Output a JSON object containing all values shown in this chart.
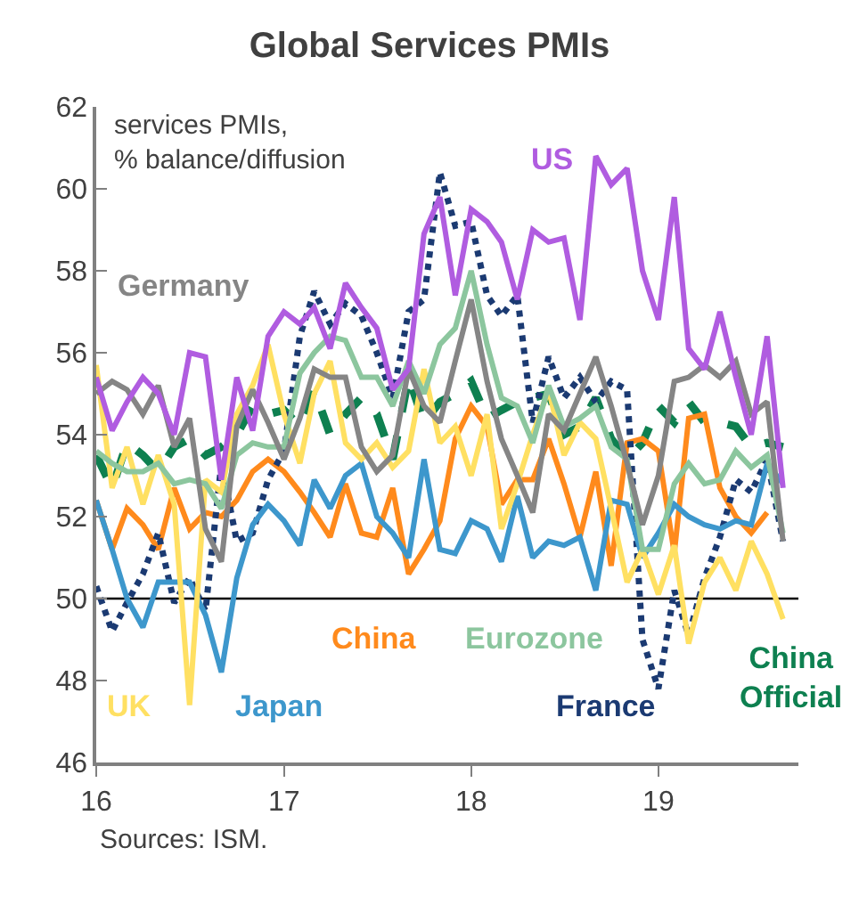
{
  "chart_data": {
    "type": "line",
    "title": "Global Services PMIs",
    "x": [
      "2016-01",
      "2016-02",
      "2016-03",
      "2016-04",
      "2016-05",
      "2016-06",
      "2016-07",
      "2016-08",
      "2016-09",
      "2016-10",
      "2016-11",
      "2016-12",
      "2017-01",
      "2017-02",
      "2017-03",
      "2017-04",
      "2017-05",
      "2017-06",
      "2017-07",
      "2017-08",
      "2017-09",
      "2017-10",
      "2017-11",
      "2017-12",
      "2018-01",
      "2018-02",
      "2018-03",
      "2018-04",
      "2018-05",
      "2018-06",
      "2018-07",
      "2018-08",
      "2018-09",
      "2018-10",
      "2018-11",
      "2018-12",
      "2019-01",
      "2019-02",
      "2019-03",
      "2019-04",
      "2019-05",
      "2019-06",
      "2019-07",
      "2019-08",
      "2019-09"
    ],
    "series": [
      {
        "name": "US",
        "color": "#b05ce0",
        "line_style": "solid",
        "values": [
          55.4,
          54.1,
          54.8,
          55.4,
          55.0,
          54.0,
          56.0,
          55.9,
          52.9,
          55.4,
          54.1,
          56.4,
          57.0,
          56.7,
          57.1,
          56.1,
          57.7,
          57.1,
          56.6,
          55.1,
          55.6,
          58.9,
          59.8,
          57.4,
          59.5,
          59.2,
          58.7,
          57.3,
          59.0,
          58.7,
          58.8,
          56.8,
          60.8,
          60.1,
          60.5,
          58.0,
          56.8,
          59.8,
          56.1,
          55.6,
          57.0,
          55.4,
          54.0,
          56.4,
          52.7
        ]
      },
      {
        "name": "Germany",
        "color": "#858585",
        "line_style": "solid",
        "values": [
          55.0,
          55.3,
          55.1,
          54.5,
          55.2,
          53.7,
          54.4,
          51.7,
          50.9,
          54.2,
          55.1,
          54.3,
          53.4,
          54.4,
          55.6,
          55.4,
          55.4,
          53.7,
          53.1,
          53.5,
          55.6,
          54.7,
          54.3,
          55.8,
          57.3,
          55.3,
          53.9,
          53.0,
          52.1,
          54.5,
          54.1,
          55.0,
          55.9,
          54.7,
          53.3,
          51.8,
          53.0,
          55.3,
          55.4,
          55.7,
          55.4,
          55.8,
          54.5,
          54.8,
          51.4
        ]
      },
      {
        "name": "Eurozone",
        "color": "#8cc69e",
        "line_style": "solid",
        "values": [
          53.6,
          53.3,
          53.1,
          53.1,
          53.3,
          52.8,
          52.9,
          52.8,
          52.2,
          53.5,
          53.8,
          53.7,
          53.7,
          55.5,
          56.0,
          56.4,
          56.3,
          55.4,
          55.4,
          54.7,
          55.8,
          55.0,
          56.2,
          56.6,
          58.0,
          56.2,
          54.9,
          54.7,
          53.8,
          55.2,
          54.2,
          54.4,
          54.7,
          53.7,
          53.4,
          51.2,
          51.2,
          52.8,
          53.3,
          52.8,
          52.9,
          53.6,
          53.2,
          53.5,
          51.6
        ]
      },
      {
        "name": "UK",
        "color": "#ffe062",
        "line_style": "solid",
        "values": [
          55.7,
          52.7,
          53.7,
          52.3,
          53.5,
          52.3,
          47.4,
          52.9,
          52.6,
          54.5,
          55.2,
          56.2,
          54.5,
          53.3,
          55.0,
          55.8,
          53.8,
          53.4,
          53.8,
          53.2,
          53.6,
          55.6,
          53.8,
          54.2,
          53.0,
          54.5,
          51.7,
          52.8,
          54.0,
          55.1,
          53.5,
          54.3,
          53.9,
          52.2,
          50.4,
          51.2,
          50.1,
          51.3,
          48.9,
          50.4,
          51.0,
          50.2,
          51.4,
          50.6,
          49.5
        ]
      },
      {
        "name": "Japan",
        "color": "#3d97cc",
        "line_style": "solid",
        "values": [
          52.4,
          51.2,
          50.0,
          49.3,
          50.4,
          50.4,
          50.4,
          49.6,
          48.2,
          50.5,
          51.8,
          52.3,
          51.9,
          51.3,
          52.9,
          52.2,
          53.0,
          53.3,
          52.0,
          51.6,
          51.0,
          53.4,
          51.2,
          51.1,
          51.9,
          51.7,
          50.9,
          52.5,
          51.0,
          51.4,
          51.3,
          51.5,
          50.2,
          52.4,
          52.3,
          51.0,
          51.6,
          52.3,
          52.0,
          51.8,
          51.7,
          51.9,
          51.8,
          53.3,
          52.8
        ]
      },
      {
        "name": "France",
        "color": "#1b3a72",
        "line_style": "dotted",
        "values": [
          50.3,
          49.2,
          49.9,
          50.6,
          51.6,
          49.9,
          50.5,
          49.7,
          53.3,
          51.4,
          51.6,
          52.9,
          53.6,
          56.4,
          57.5,
          56.7,
          57.2,
          56.9,
          56.0,
          54.9,
          57.0,
          57.3,
          60.4,
          59.1,
          59.2,
          57.4,
          56.9,
          57.4,
          54.3,
          55.9,
          54.9,
          55.4,
          54.8,
          55.3,
          55.1,
          49.0,
          47.8,
          50.2,
          49.1,
          50.5,
          51.5,
          52.9,
          52.6,
          53.4,
          51.4
        ]
      },
      {
        "name": "China",
        "color": "#ff8a1c",
        "line_style": "solid",
        "values": [
          52.4,
          51.2,
          52.2,
          51.8,
          51.2,
          52.7,
          51.7,
          52.1,
          52.0,
          52.4,
          53.1,
          53.4,
          53.1,
          52.6,
          52.1,
          51.5,
          52.8,
          51.6,
          51.5,
          52.7,
          50.6,
          51.2,
          51.9,
          53.9,
          54.7,
          54.2,
          52.3,
          52.9,
          52.9,
          53.9,
          52.8,
          51.5,
          53.1,
          50.8,
          53.8,
          53.9,
          53.6,
          51.1,
          54.4,
          54.5,
          52.7,
          52.0,
          51.6,
          52.1,
          null
        ]
      },
      {
        "name": "China Official",
        "color": "#0e8050",
        "line_style": "dashed",
        "values": [
          53.5,
          52.7,
          53.8,
          53.5,
          53.1,
          53.7,
          53.9,
          53.5,
          53.7,
          54.0,
          54.7,
          54.5,
          54.6,
          54.2,
          55.1,
          54.0,
          54.5,
          54.9,
          54.5,
          53.4,
          55.4,
          54.3,
          54.8,
          55.0,
          55.3,
          54.4,
          54.6,
          54.8,
          54.9,
          55.0,
          54.0,
          54.2,
          54.9,
          53.9,
          53.4,
          53.8,
          54.7,
          54.3,
          54.8,
          54.3,
          54.3,
          54.2,
          53.7,
          53.8,
          53.7
        ]
      }
    ],
    "xlim": [
      "2016-01",
      "2019-10"
    ],
    "xticks": [
      {
        "value": "2016-01",
        "label": "16"
      },
      {
        "value": "2017-01",
        "label": "17"
      },
      {
        "value": "2018-01",
        "label": "18"
      },
      {
        "value": "2019-01",
        "label": "19"
      }
    ],
    "ylim": [
      46,
      62
    ],
    "yticks": [
      46,
      48,
      50,
      52,
      54,
      56,
      58,
      60,
      62
    ],
    "ref_lines": [
      {
        "axis": "y",
        "value": 50,
        "color": "#000000"
      }
    ],
    "grid": false,
    "legend": false,
    "marker": "none",
    "annotations": [
      "services PMIs,\n% balance/diffusion",
      "Sources: ISM."
    ]
  }
}
